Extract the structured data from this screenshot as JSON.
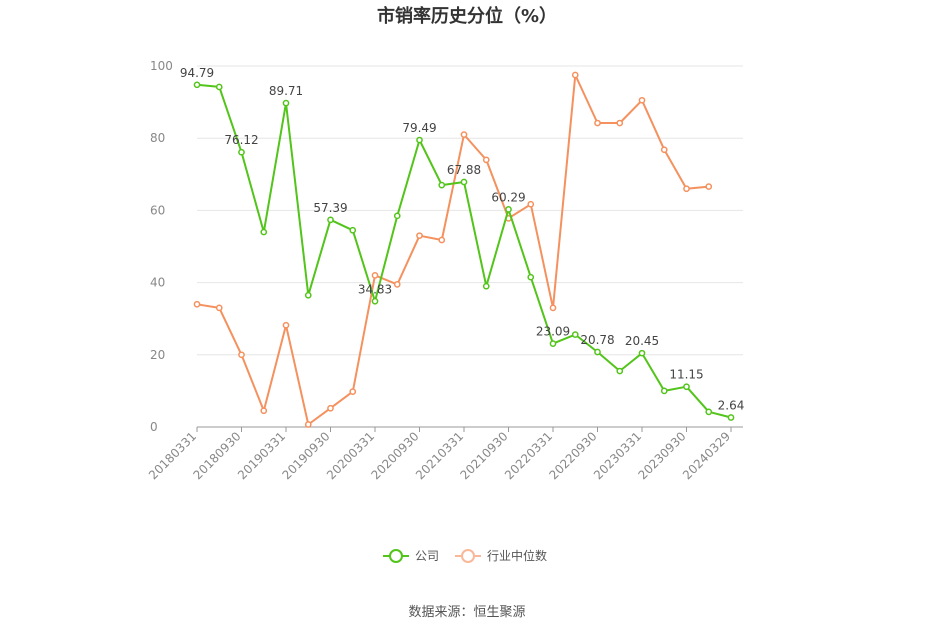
{
  "chart_data": {
    "type": "line",
    "title": "市销率历史分位（%）",
    "ylim": [
      0,
      100
    ],
    "yticks": [
      0,
      20,
      40,
      60,
      80,
      100
    ],
    "x_tick_labels": [
      "20180331",
      "20180930",
      "20190331",
      "20190930",
      "20200331",
      "20200930",
      "20210331",
      "20210930",
      "20220331",
      "20220930",
      "20230331",
      "20230930",
      "20240329"
    ],
    "x": [
      "20180331",
      "20180630",
      "20180930",
      "20181231",
      "20190331",
      "20190630",
      "20190930",
      "20191231",
      "20200331",
      "20200630",
      "20200930",
      "20201231",
      "20210331",
      "20210630",
      "20210930",
      "20211231",
      "20220331",
      "20220630",
      "20220930",
      "20221231",
      "20230331",
      "20230630",
      "20230930",
      "20231231",
      "20240329"
    ],
    "series": [
      {
        "name": "公司",
        "color": "#52c41a",
        "values": [
          94.79,
          94.2,
          76.12,
          54.0,
          89.71,
          36.5,
          57.39,
          54.5,
          34.83,
          58.5,
          79.49,
          67.0,
          67.88,
          39.0,
          60.29,
          41.5,
          23.09,
          25.6,
          20.78,
          15.5,
          20.45,
          10.0,
          11.15,
          4.2,
          2.64
        ],
        "labels": [
          "94.79",
          null,
          "76.12",
          null,
          "89.71",
          null,
          "57.39",
          null,
          "34.83",
          null,
          "79.49",
          null,
          "67.88",
          null,
          "60.29",
          null,
          "23.09",
          null,
          "20.78",
          null,
          "20.45",
          null,
          "11.15",
          null,
          "2.64"
        ]
      },
      {
        "name": "行业中位数",
        "color": "#f4915e",
        "values": [
          34.0,
          33.0,
          20.0,
          4.5,
          28.2,
          0.7,
          5.2,
          9.8,
          42.0,
          39.5,
          53.0,
          51.8,
          81.0,
          74.0,
          57.8,
          61.7,
          33.0,
          97.5,
          84.2,
          84.2,
          90.5,
          76.8,
          66.0,
          66.6,
          null
        ],
        "labels": []
      }
    ],
    "grid": true,
    "legend_position": "bottom-center"
  },
  "legend": [
    {
      "label": "公司",
      "color": "#52c41a"
    },
    {
      "label": "行业中位数",
      "color": "#f4915e"
    }
  ],
  "source": "数据来源：恒生聚源"
}
